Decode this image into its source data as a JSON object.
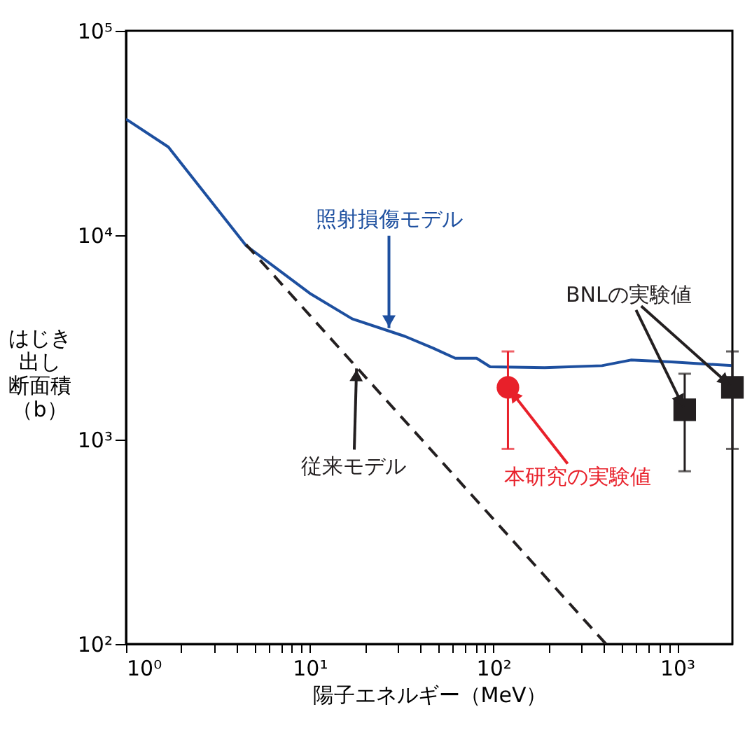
{
  "chart_data": {
    "type": "line",
    "xlabel": "陽子エネルギー（MeV）",
    "ylabel": "はじき出し断面積（b）",
    "log": "xy",
    "xlim": [
      1,
      2000
    ],
    "ylim": [
      100,
      100000
    ],
    "xticks": [
      {
        "value": 1,
        "label": "10⁰"
      },
      {
        "value": 2,
        "label": null
      },
      {
        "value": 3,
        "label": null
      },
      {
        "value": 4,
        "label": null
      },
      {
        "value": 5,
        "label": null
      },
      {
        "value": 6,
        "label": null
      },
      {
        "value": 7,
        "label": null
      },
      {
        "value": 8,
        "label": null
      },
      {
        "value": 9,
        "label": null
      },
      {
        "value": 10,
        "label": "10¹"
      },
      {
        "value": 20,
        "label": null
      },
      {
        "value": 30,
        "label": null
      },
      {
        "value": 40,
        "label": null
      },
      {
        "value": 50,
        "label": null
      },
      {
        "value": 60,
        "label": null
      },
      {
        "value": 70,
        "label": null
      },
      {
        "value": 80,
        "label": null
      },
      {
        "value": 90,
        "label": null
      },
      {
        "value": 100,
        "label": "10²"
      },
      {
        "value": 200,
        "label": null
      },
      {
        "value": 300,
        "label": null
      },
      {
        "value": 400,
        "label": null
      },
      {
        "value": 500,
        "label": null
      },
      {
        "value": 600,
        "label": null
      },
      {
        "value": 700,
        "label": null
      },
      {
        "value": 800,
        "label": null
      },
      {
        "value": 900,
        "label": null
      },
      {
        "value": 1000,
        "label": "10³"
      }
    ],
    "yticks": [
      {
        "value": 100,
        "label": "10²"
      },
      {
        "value": 1000,
        "label": "10³"
      },
      {
        "value": 10000,
        "label": "10⁴"
      },
      {
        "value": 100000,
        "label": "10⁵"
      }
    ],
    "grid": false,
    "series": [
      {
        "color": "#1d4f9f",
        "line_style": "solid",
        "x": [
          1,
          1.7,
          4.5,
          10,
          17,
          33,
          47,
          62,
          81,
          96,
          190,
          390,
          560,
          930,
          2000
        ],
        "values": [
          37000,
          27000,
          8900,
          5200,
          3900,
          3200,
          2800,
          2500,
          2500,
          2270,
          2250,
          2300,
          2450,
          2400,
          2300
        ]
      },
      {
        "color": "#231f20",
        "line_style": "dashed",
        "x": [
          4.5,
          410
        ],
        "values": [
          9000,
          100
        ]
      },
      {
        "type": "scatter",
        "color": "#e8202a",
        "marker": "circle",
        "x": [
          120
        ],
        "values": [
          1800
        ],
        "errors": [
          [
            900,
            2700
          ]
        ]
      },
      {
        "type": "scatter",
        "color": "#231f20",
        "marker": "square",
        "x": [
          1100,
          2000
        ],
        "values": [
          1400,
          1800
        ],
        "errors": [
          [
            700,
            2100
          ],
          [
            900,
            2700
          ]
        ]
      }
    ],
    "annotations": [
      {
        "text": "照射損傷モデル",
        "x": 27,
        "y": 3400
      },
      {
        "text": "従来モデル",
        "x": 18,
        "y": 2300
      },
      {
        "text": "本研究の実験値",
        "x": 120,
        "y": 1800
      },
      {
        "text": "BNLの実験値",
        "x": 1100,
        "y": 1400
      }
    ]
  }
}
